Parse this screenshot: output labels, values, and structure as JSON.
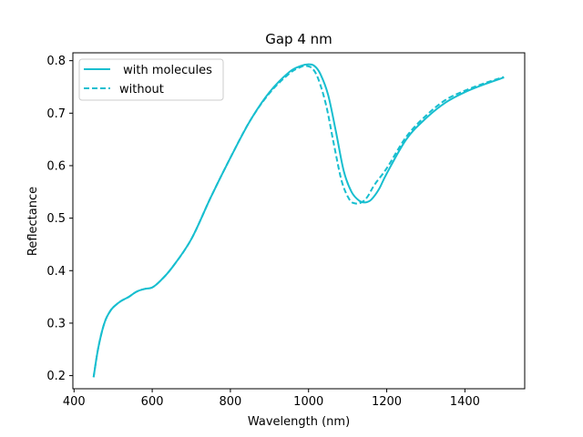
{
  "chart_data": {
    "type": "line",
    "title": "Gap 4 nm",
    "xlabel": "Wavelength (nm)",
    "ylabel": "Reflectance",
    "xlim": [
      397,
      1553
    ],
    "ylim": [
      0.175,
      0.815
    ],
    "xticks": [
      400,
      600,
      800,
      1000,
      1200,
      1400
    ],
    "yticks": [
      0.2,
      0.3,
      0.4,
      0.5,
      0.6,
      0.7,
      0.8
    ],
    "xtick_labels": [
      "400",
      "600",
      "800",
      "1000",
      "1200",
      "1400"
    ],
    "ytick_labels": [
      "0.2",
      "0.3",
      "0.4",
      "0.5",
      "0.6",
      "0.7",
      "0.8"
    ],
    "grid": false,
    "legend_position": "top-left",
    "series": [
      {
        "name": " with molecules",
        "color": "#17becf",
        "dash": "solid",
        "x": [
          450,
          460,
          470,
          480,
          490,
          500,
          520,
          540,
          560,
          580,
          600,
          620,
          650,
          700,
          750,
          800,
          850,
          900,
          950,
          980,
          1000,
          1015,
          1030,
          1050,
          1070,
          1090,
          1110,
          1130,
          1145,
          1160,
          1180,
          1200,
          1250,
          1300,
          1350,
          1400,
          1450,
          1500
        ],
        "y": [
          0.197,
          0.245,
          0.28,
          0.305,
          0.32,
          0.33,
          0.342,
          0.35,
          0.36,
          0.365,
          0.368,
          0.38,
          0.405,
          0.46,
          0.54,
          0.615,
          0.685,
          0.74,
          0.778,
          0.79,
          0.793,
          0.79,
          0.775,
          0.735,
          0.665,
          0.59,
          0.55,
          0.533,
          0.53,
          0.535,
          0.555,
          0.585,
          0.65,
          0.69,
          0.72,
          0.74,
          0.755,
          0.768
        ]
      },
      {
        "name": "without",
        "color": "#17becf",
        "dash": "dashed",
        "x": [
          450,
          460,
          470,
          480,
          490,
          500,
          520,
          540,
          560,
          580,
          600,
          620,
          650,
          700,
          750,
          800,
          850,
          900,
          950,
          980,
          995,
          1010,
          1025,
          1045,
          1065,
          1085,
          1105,
          1120,
          1135,
          1150,
          1170,
          1200,
          1250,
          1300,
          1350,
          1400,
          1450,
          1500
        ],
        "y": [
          0.197,
          0.245,
          0.28,
          0.305,
          0.32,
          0.33,
          0.342,
          0.35,
          0.36,
          0.365,
          0.368,
          0.38,
          0.405,
          0.46,
          0.54,
          0.615,
          0.685,
          0.738,
          0.775,
          0.788,
          0.79,
          0.785,
          0.765,
          0.715,
          0.64,
          0.57,
          0.535,
          0.528,
          0.53,
          0.54,
          0.565,
          0.595,
          0.655,
          0.695,
          0.725,
          0.743,
          0.757,
          0.769
        ]
      }
    ]
  }
}
